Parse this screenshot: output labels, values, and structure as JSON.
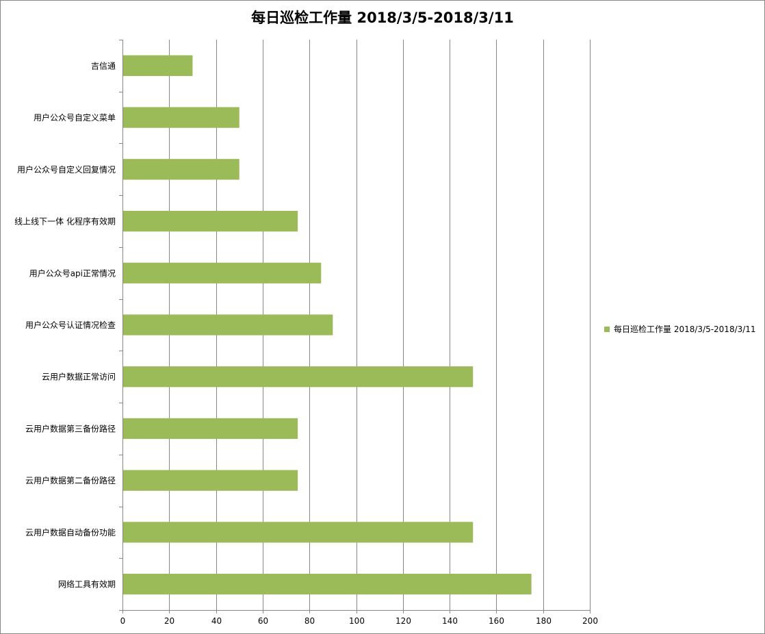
{
  "chart_data": {
    "type": "bar",
    "orientation": "horizontal",
    "title": "每日巡检工作量 2018/3/5-2018/3/11",
    "categories": [
      "吉信通",
      "用户公众号自定义菜单",
      "用户公众号自定义回复情况",
      "线上线下一体 化程序有效期",
      "用户公众号api正常情况",
      "用户公众号认证情况检查",
      "云用户数据正常访问",
      "云用户数据第三备份路径",
      "云用户数据第二备份路径",
      "云用户数据自动备份功能",
      "网络工具有效期"
    ],
    "series": [
      {
        "name": "每日巡检工作量 2018/3/5-2018/3/11",
        "values": [
          30,
          50,
          50,
          75,
          85,
          90,
          150,
          75,
          75,
          150,
          175
        ]
      }
    ],
    "xlim": [
      0,
      200
    ],
    "xticks": [
      "0",
      "20",
      "40",
      "60",
      "80",
      "100",
      "120",
      "140",
      "160",
      "180",
      "200"
    ],
    "grid": "vertical",
    "legend": "right",
    "bar_color": "#9BBB59",
    "grid_color": "#868686"
  }
}
